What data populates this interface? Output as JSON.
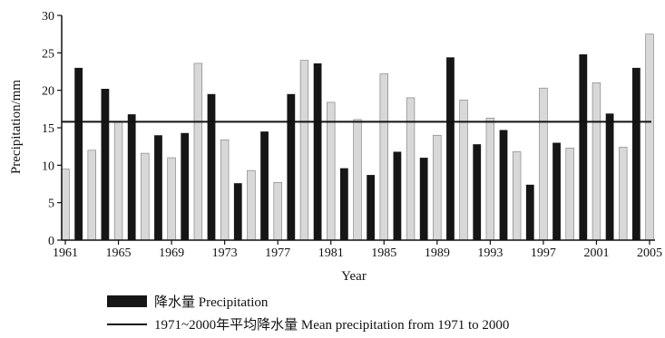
{
  "chart_data": {
    "type": "bar",
    "x": [
      1961,
      1962,
      1963,
      1964,
      1965,
      1966,
      1967,
      1968,
      1969,
      1970,
      1971,
      1972,
      1973,
      1974,
      1975,
      1976,
      1977,
      1978,
      1979,
      1980,
      1981,
      1982,
      1983,
      1984,
      1985,
      1986,
      1987,
      1988,
      1989,
      1990,
      1991,
      1992,
      1993,
      1994,
      1995,
      1996,
      1997,
      1998,
      1999,
      2000,
      2001,
      2002,
      2003,
      2004,
      2005
    ],
    "values": [
      9.5,
      23,
      12,
      20.2,
      15.8,
      16.8,
      11.6,
      14,
      11,
      14.3,
      23.6,
      19.5,
      13.4,
      7.6,
      9.3,
      14.5,
      7.7,
      19.5,
      24,
      23.6,
      18.4,
      9.6,
      16.1,
      8.7,
      22.2,
      11.8,
      19,
      11,
      14,
      24.4,
      18.7,
      12.8,
      16.3,
      14.7,
      11.8,
      7.4,
      20.3,
      13,
      12.3,
      24.8,
      21,
      16.9,
      12.4,
      23,
      27.5
    ],
    "mean_line": 15.8,
    "xticks": [
      "1961",
      "1965",
      "1969",
      "1973",
      "1977",
      "1981",
      "1985",
      "1989",
      "1993",
      "1997",
      "2001",
      "2005"
    ],
    "yticks": [
      "0",
      "5",
      "10",
      "15",
      "20",
      "25",
      "30"
    ],
    "ylim": [
      0,
      30
    ],
    "xlabel": "Year",
    "ylabel": "Precipitation/mm",
    "bar_color": "#161616",
    "alt_bar_color": "#d8d8d8",
    "line_color": "#111111"
  },
  "legend": {
    "bar_label": "降水量  Precipitation",
    "line_label": "1971~2000年平均降水量  Mean precipitation from 1971 to 2000"
  }
}
